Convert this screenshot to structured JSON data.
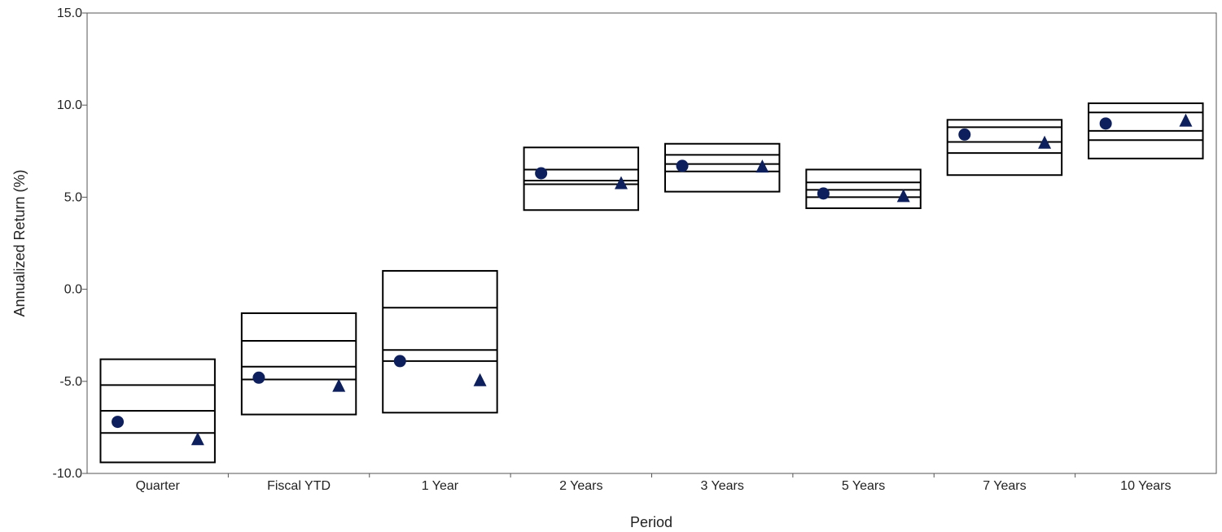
{
  "chart_data": {
    "type": "floating-bar-percentile",
    "xlabel": "Period",
    "ylabel": "Annualized Return (%)",
    "ylim": [
      -10.0,
      15.0
    ],
    "yticks": [
      15.0,
      10.0,
      5.0,
      0.0,
      -5.0,
      -10.0
    ],
    "ytick_labels": [
      "15.0",
      "10.0",
      "5.0",
      "0.0",
      "-5.0",
      "-10.0"
    ],
    "grid": false,
    "categories": [
      "Quarter",
      "Fiscal YTD",
      "1 Year",
      "2 Years",
      "3 Years",
      "5 Years",
      "7 Years",
      "10 Years"
    ],
    "boxes": [
      {
        "p5": -9.4,
        "p25": -7.8,
        "median": -6.6,
        "p75": -5.2,
        "p95": -3.8
      },
      {
        "p5": -6.8,
        "p25": -4.9,
        "median": -4.2,
        "p75": -2.8,
        "p95": -1.3
      },
      {
        "p5": -6.7,
        "p25": -3.9,
        "median": -3.3,
        "p75": -1.0,
        "p95": 1.0
      },
      {
        "p5": 4.3,
        "p25": 5.7,
        "median": 5.9,
        "p75": 6.5,
        "p95": 7.7
      },
      {
        "p5": 5.3,
        "p25": 6.4,
        "median": 6.8,
        "p75": 7.3,
        "p95": 7.9
      },
      {
        "p5": 4.4,
        "p25": 5.0,
        "median": 5.4,
        "p75": 5.8,
        "p95": 6.5
      },
      {
        "p5": 6.2,
        "p25": 7.4,
        "median": 8.0,
        "p75": 8.8,
        "p95": 9.2
      },
      {
        "p5": 7.1,
        "p25": 8.1,
        "median": 8.6,
        "p75": 9.6,
        "p95": 10.1
      }
    ],
    "series": [
      {
        "marker": "circle",
        "color": "#0d1f5c",
        "values": [
          -7.2,
          -4.8,
          -3.9,
          6.3,
          6.7,
          5.2,
          8.4,
          9.0
        ]
      },
      {
        "marker": "triangle",
        "color": "#0d1f5c",
        "values": [
          -8.2,
          -5.3,
          -5.0,
          5.7,
          6.6,
          5.0,
          7.9,
          9.1
        ]
      }
    ]
  },
  "colors": {
    "marker": "#0d1f5c",
    "box_stroke": "#000000",
    "axis": "#555555"
  }
}
